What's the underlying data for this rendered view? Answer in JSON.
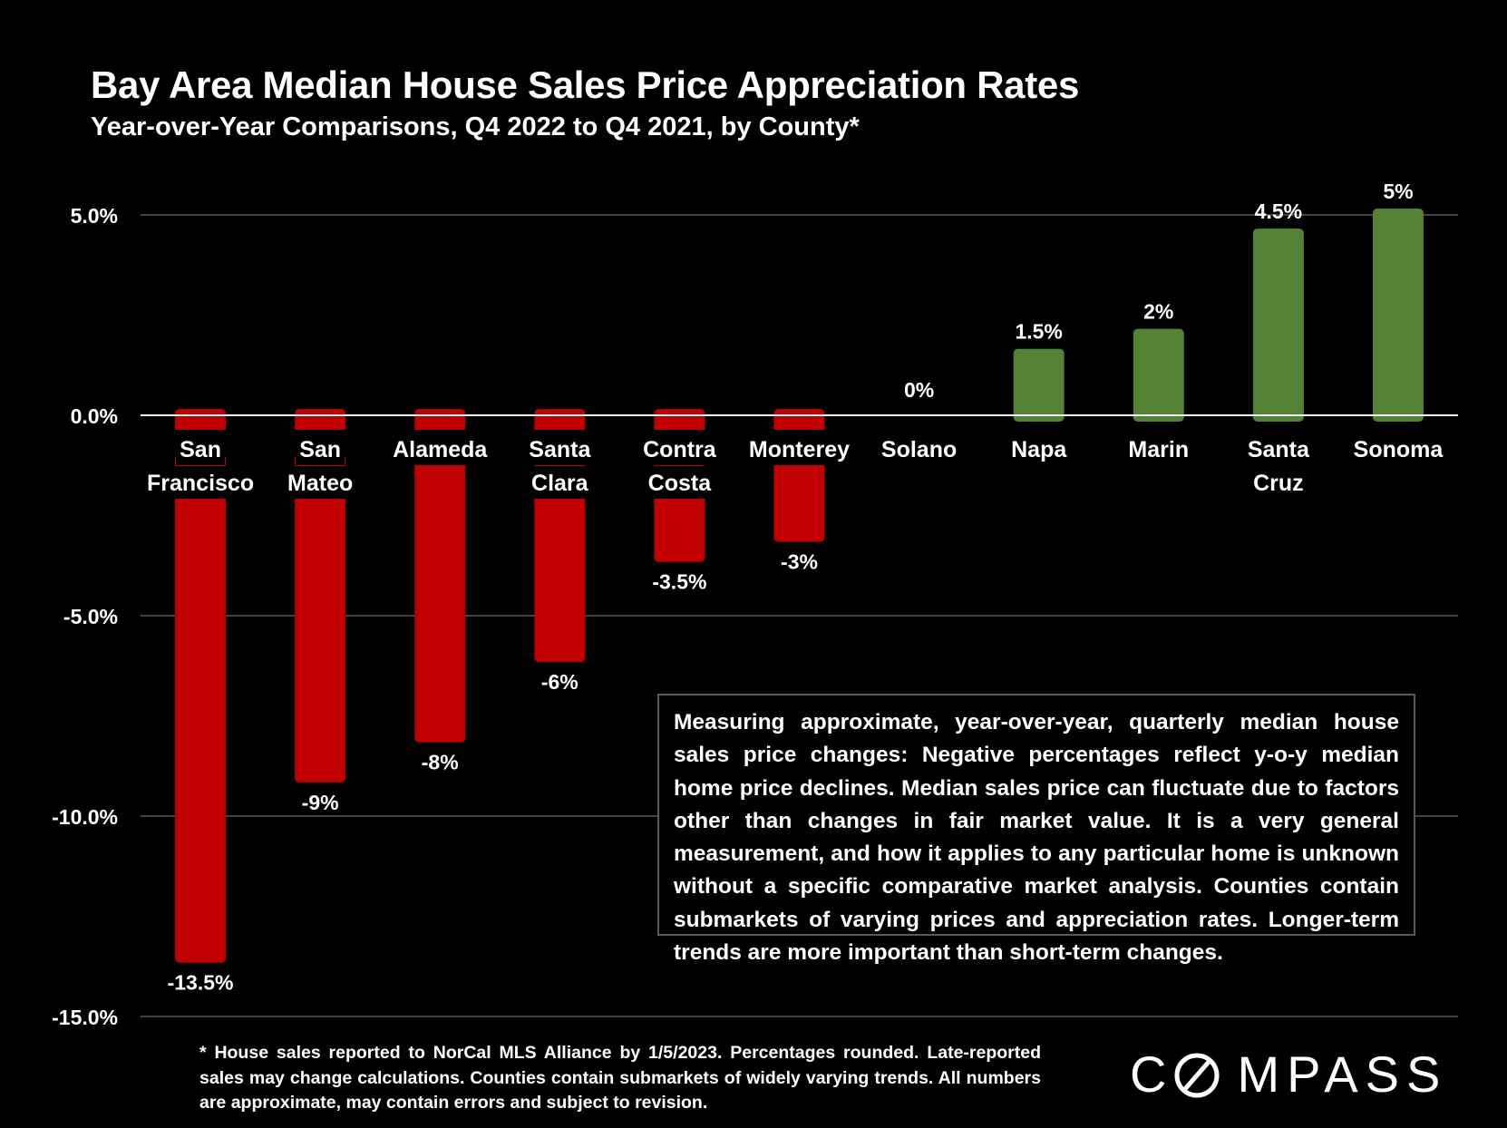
{
  "chart_data": {
    "type": "bar",
    "title": "Bay Area Median House Sales Price Appreciation Rates",
    "subtitle": "Year-over-Year Comparisons, Q4 2022 to Q4 2021, by County*",
    "categories": [
      [
        "San",
        "Francisco"
      ],
      [
        "San",
        "Mateo"
      ],
      [
        "Alameda"
      ],
      [
        "Santa",
        "Clara"
      ],
      [
        "Contra",
        "Costa"
      ],
      [
        "Monterey"
      ],
      [
        "Solano"
      ],
      [
        "Napa"
      ],
      [
        "Marin"
      ],
      [
        "Santa",
        "Cruz"
      ],
      [
        "Sonoma"
      ]
    ],
    "values": [
      -13.5,
      -9,
      -8,
      -6,
      -3.5,
      -3,
      0,
      1.5,
      2,
      4.5,
      5
    ],
    "data_labels": [
      "-13.5%",
      "-9%",
      "-8%",
      "-6%",
      "-3.5%",
      "-3%",
      "0%",
      "1.5%",
      "2%",
      "4.5%",
      "5%"
    ],
    "y_ticks": [
      5,
      0,
      -5,
      -10,
      -15
    ],
    "y_tick_labels": [
      "5.0%",
      "0.0%",
      "-5.0%",
      "-10.0%",
      "-15.0%"
    ],
    "ylim": [
      -15,
      5
    ],
    "grid": true,
    "colors": {
      "negative": "#c00000",
      "positive": "#548235",
      "gridline": "#595959",
      "zero_line": "#ffffff"
    }
  },
  "note": "Measuring approximate, year-over-year, quarterly median house sales price changes: Negative percentages reflect y-o-y median home price declines. Median sales price can fluctuate due to factors other than changes in fair market value. It is a very general measurement, and how it applies to any particular home is unknown without a specific comparative market analysis. Counties contain submarkets of varying prices and appreciation rates. Longer-term trends are more important than short-term changes.",
  "footnote": "* House sales reported to NorCal MLS Alliance by 1/5/2023. Percentages rounded. Late-reported sales may change calculations. Counties contain submarkets of widely varying trends. All numbers are approximate, may contain errors and subject to revision.",
  "logo": {
    "text": "COMPASS",
    "part1": "C",
    "part2": "MPASS"
  }
}
